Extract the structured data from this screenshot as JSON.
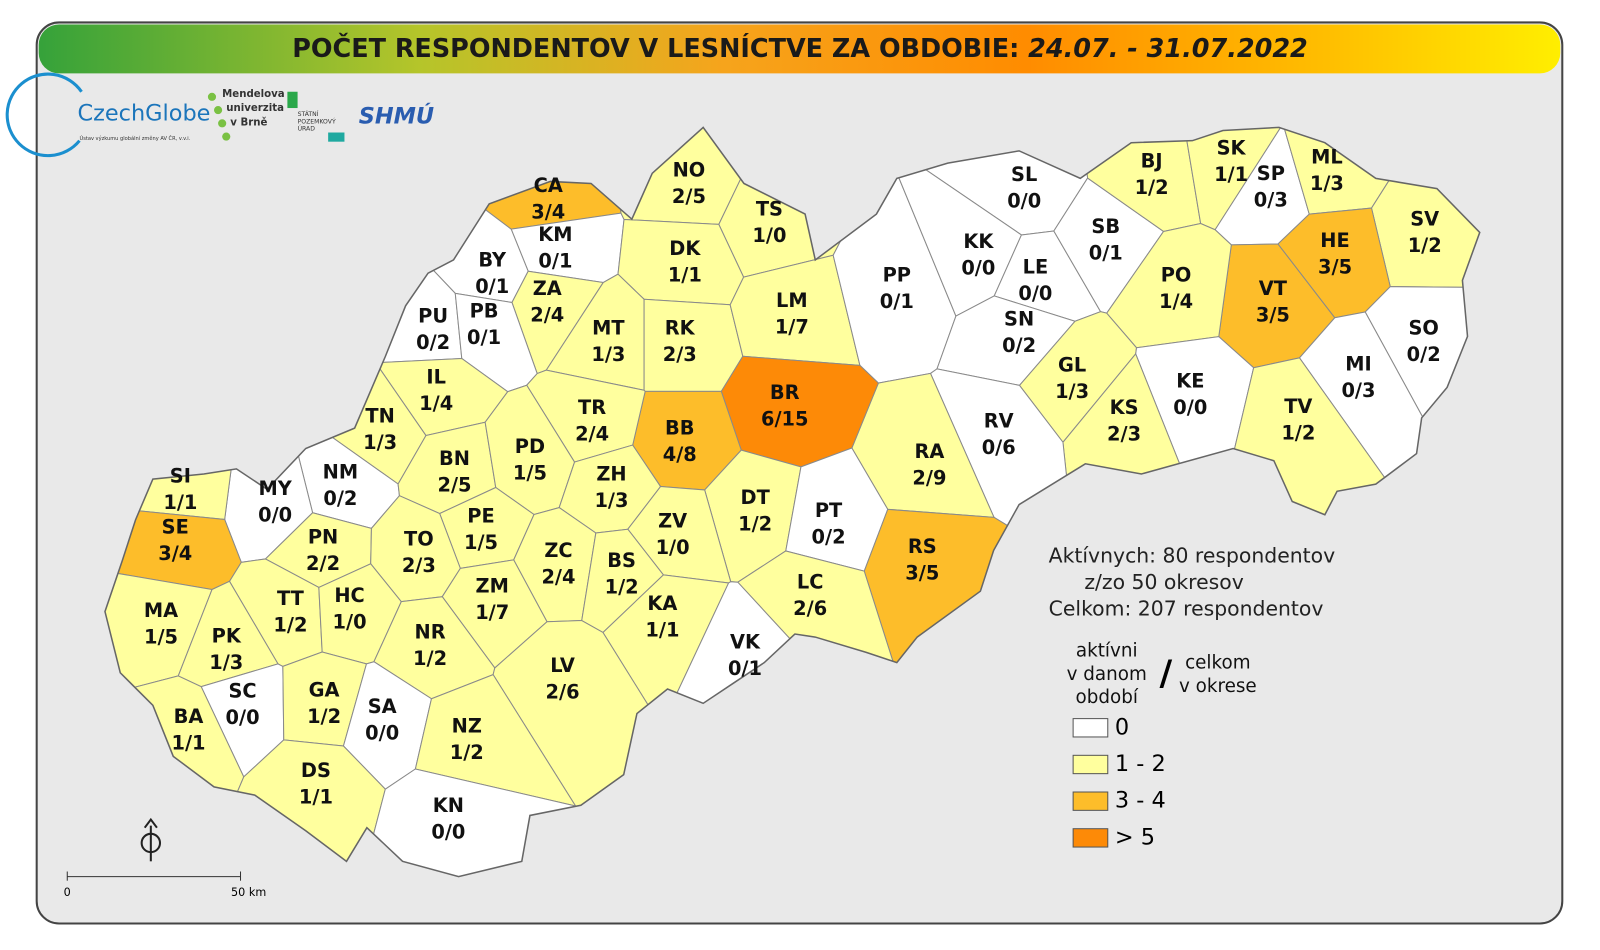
{
  "header": {
    "title": "POČET RESPONDENTOV V LESNÍCTVE ZA OBDOBIE: ",
    "period": "24.07. - 31.07.2022"
  },
  "logos": {
    "czechglobe": "CzechGlobe",
    "czechglobe_sub": "Ústav výzkumu globální změny AV ČR, v.v.i.",
    "mendel": [
      "Mendelova",
      "univerzita",
      "v Brně"
    ],
    "spu": [
      "STÁTNÍ",
      "POZEMKOVÝ",
      "ÚRAD"
    ],
    "shmu": "SHMÚ"
  },
  "districts": [
    {
      "code": "CA",
      "ratio": "3/4",
      "class": 2
    },
    {
      "code": "KM",
      "ratio": "0/1",
      "class": 0
    },
    {
      "code": "BY",
      "ratio": "0/1",
      "class": 0
    },
    {
      "code": "ZA",
      "ratio": "2/4",
      "class": 1
    },
    {
      "code": "PU",
      "ratio": "0/2",
      "class": 0
    },
    {
      "code": "PB",
      "ratio": "0/1",
      "class": 0
    },
    {
      "code": "NO",
      "ratio": "2/5",
      "class": 1
    },
    {
      "code": "TS",
      "ratio": "1/0",
      "class": 1
    },
    {
      "code": "DK",
      "ratio": "1/1",
      "class": 1
    },
    {
      "code": "MT",
      "ratio": "1/3",
      "class": 1
    },
    {
      "code": "RK",
      "ratio": "2/3",
      "class": 1
    },
    {
      "code": "LM",
      "ratio": "1/7",
      "class": 1
    },
    {
      "code": "PP",
      "ratio": "0/1",
      "class": 0
    },
    {
      "code": "SL",
      "ratio": "0/0",
      "class": 0
    },
    {
      "code": "KK",
      "ratio": "0/0",
      "class": 0
    },
    {
      "code": "LE",
      "ratio": "0/0",
      "class": 0
    },
    {
      "code": "SB",
      "ratio": "0/1",
      "class": 0
    },
    {
      "code": "SN",
      "ratio": "0/2",
      "class": 0
    },
    {
      "code": "BJ",
      "ratio": "1/2",
      "class": 1
    },
    {
      "code": "SK",
      "ratio": "1/1",
      "class": 1
    },
    {
      "code": "SP",
      "ratio": "0/3",
      "class": 0
    },
    {
      "code": "ML",
      "ratio": "1/3",
      "class": 1
    },
    {
      "code": "SV",
      "ratio": "1/2",
      "class": 1
    },
    {
      "code": "HE",
      "ratio": "3/5",
      "class": 2
    },
    {
      "code": "VT",
      "ratio": "3/5",
      "class": 2
    },
    {
      "code": "PO",
      "ratio": "1/4",
      "class": 1
    },
    {
      "code": "SO",
      "ratio": "0/2",
      "class": 0
    },
    {
      "code": "MI",
      "ratio": "0/3",
      "class": 0
    },
    {
      "code": "GL",
      "ratio": "1/3",
      "class": 1
    },
    {
      "code": "KE",
      "ratio": "0/0",
      "class": 0
    },
    {
      "code": "KS",
      "ratio": "2/3",
      "class": 1
    },
    {
      "code": "TV",
      "ratio": "1/2",
      "class": 1
    },
    {
      "code": "RV",
      "ratio": "0/6",
      "class": 0
    },
    {
      "code": "RA",
      "ratio": "2/9",
      "class": 1
    },
    {
      "code": "BR",
      "ratio": "6/15",
      "class": 3
    },
    {
      "code": "BB",
      "ratio": "4/8",
      "class": 2
    },
    {
      "code": "TR",
      "ratio": "2/4",
      "class": 1
    },
    {
      "code": "IL",
      "ratio": "1/4",
      "class": 1
    },
    {
      "code": "TN",
      "ratio": "1/3",
      "class": 1
    },
    {
      "code": "NM",
      "ratio": "0/2",
      "class": 0
    },
    {
      "code": "MY",
      "ratio": "0/0",
      "class": 0
    },
    {
      "code": "SI",
      "ratio": "1/1",
      "class": 1
    },
    {
      "code": "SE",
      "ratio": "3/4",
      "class": 2
    },
    {
      "code": "BN",
      "ratio": "2/5",
      "class": 1
    },
    {
      "code": "PD",
      "ratio": "1/5",
      "class": 1
    },
    {
      "code": "ZH",
      "ratio": "1/3",
      "class": 1
    },
    {
      "code": "DT",
      "ratio": "1/2",
      "class": 1
    },
    {
      "code": "PT",
      "ratio": "0/2",
      "class": 0
    },
    {
      "code": "PE",
      "ratio": "1/5",
      "class": 1
    },
    {
      "code": "PN",
      "ratio": "2/2",
      "class": 1
    },
    {
      "code": "TO",
      "ratio": "2/3",
      "class": 1
    },
    {
      "code": "ZV",
      "ratio": "1/0",
      "class": 1
    },
    {
      "code": "RS",
      "ratio": "3/5",
      "class": 2
    },
    {
      "code": "ZC",
      "ratio": "2/4",
      "class": 1
    },
    {
      "code": "BS",
      "ratio": "1/2",
      "class": 1
    },
    {
      "code": "ZM",
      "ratio": "1/7",
      "class": 1
    },
    {
      "code": "TT",
      "ratio": "1/2",
      "class": 1
    },
    {
      "code": "HC",
      "ratio": "1/0",
      "class": 1
    },
    {
      "code": "MA",
      "ratio": "1/5",
      "class": 1
    },
    {
      "code": "LC",
      "ratio": "2/6",
      "class": 1
    },
    {
      "code": "KA",
      "ratio": "1/1",
      "class": 1
    },
    {
      "code": "NR",
      "ratio": "1/2",
      "class": 1
    },
    {
      "code": "PK",
      "ratio": "1/3",
      "class": 1
    },
    {
      "code": "VK",
      "ratio": "0/1",
      "class": 0
    },
    {
      "code": "LV",
      "ratio": "2/6",
      "class": 1
    },
    {
      "code": "SC",
      "ratio": "0/0",
      "class": 0
    },
    {
      "code": "GA",
      "ratio": "1/2",
      "class": 1
    },
    {
      "code": "SA",
      "ratio": "0/0",
      "class": 0
    },
    {
      "code": "BA",
      "ratio": "1/1",
      "class": 1
    },
    {
      "code": "NZ",
      "ratio": "1/2",
      "class": 1
    },
    {
      "code": "DS",
      "ratio": "1/1",
      "class": 1
    },
    {
      "code": "KN",
      "ratio": "0/0",
      "class": 0
    }
  ],
  "summary": [
    "Aktívnych: 80 respondentov",
    "z/zo 50 okresov",
    "Celkom: 207 respondentov"
  ],
  "legend": {
    "active": [
      "aktívni",
      "v danom",
      "období"
    ],
    "slash": "/",
    "total": [
      "celkom",
      "v okrese"
    ],
    "items": [
      {
        "label": "0",
        "color": "#ffffff"
      },
      {
        "label": "1 - 2",
        "color": "#ffff9e"
      },
      {
        "label": "3 - 4",
        "color": "#fdbd2a"
      },
      {
        "label": "> 5",
        "color": "#fd8a07"
      }
    ]
  },
  "scale": {
    "start": "0",
    "end": "50 km"
  }
}
